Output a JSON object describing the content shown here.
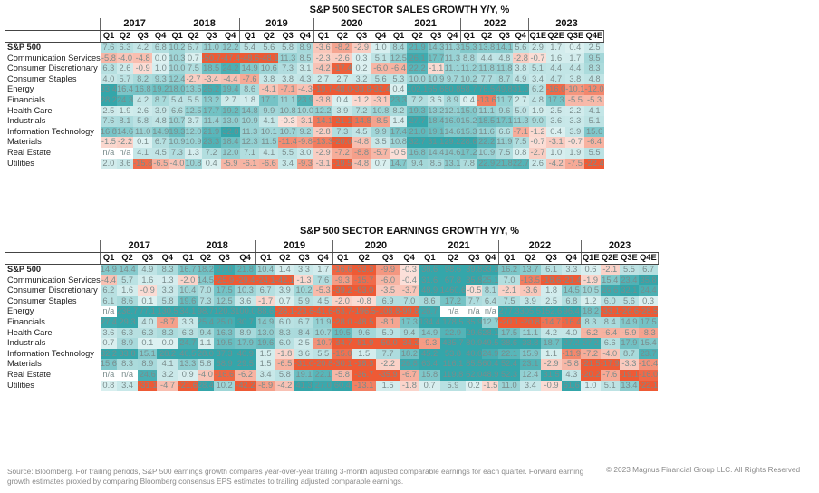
{
  "chart_data": [
    {
      "type": "heatmap",
      "title": "S&P 500 SECTOR SALES GROWTH Y/Y, %",
      "years": [
        "2017",
        "2018",
        "2019",
        "2020",
        "2021",
        "2022",
        "2023"
      ],
      "quarters": [
        "Q1",
        "Q2",
        "Q3",
        "Q4",
        "Q1",
        "Q2",
        "Q3",
        "Q4",
        "Q1",
        "Q2",
        "Q3",
        "Q4",
        "Q1",
        "Q2",
        "Q3",
        "Q4",
        "Q1",
        "Q2",
        "Q3",
        "Q4",
        "Q1",
        "Q2",
        "Q3",
        "Q4",
        "Q1E",
        "Q2E",
        "Q3E",
        "Q4E"
      ],
      "colors": {
        "positive": "#34a6aa",
        "negative": "#ee5a35",
        "neutral": "#ffffff"
      },
      "rows": [
        {
          "label": "S&P 500",
          "bold": true,
          "values": [
            7.6,
            6.3,
            4.2,
            6.8,
            10.2,
            6.7,
            11.0,
            12.2,
            5.4,
            5.6,
            5.8,
            8.9,
            -3.6,
            -8.2,
            -2.9,
            1.0,
            8.4,
            21.9,
            14.3,
            11.3,
            15.3,
            13.8,
            14.1,
            5.6,
            2.9,
            1.7,
            0.4,
            2.5
          ]
        },
        {
          "label": "Communication Services",
          "values": [
            -5.8,
            -4.0,
            -4.8,
            0.0,
            10.3,
            0.7,
            -50.7,
            -47.4,
            -48.6,
            -48.1,
            11.3,
            8.5,
            -2.3,
            -2.6,
            0.3,
            5.1,
            12.5,
            26.1,
            17.7,
            11.3,
            8.8,
            4.4,
            4.8,
            -2.8,
            -0.7,
            1.6,
            1.7,
            9.5
          ]
        },
        {
          "label": "Consumer Discretionary",
          "values": [
            6.3,
            2.6,
            -0.9,
            1.0,
            10.0,
            7.5,
            18.5,
            24.2,
            14.9,
            10.6,
            7.3,
            3.1,
            -4.2,
            -17.4,
            0.2,
            -6.0,
            -6.4,
            22.2,
            -1.1,
            11.1,
            11.2,
            11.8,
            11.8,
            3.8,
            5.1,
            4.4,
            4.4,
            8.3
          ]
        },
        {
          "label": "Consumer Staples",
          "values": [
            4.0,
            5.7,
            8.2,
            9.3,
            12.4,
            -2.7,
            -3.4,
            -4.4,
            -7.6,
            3.8,
            3.8,
            4.3,
            2.7,
            2.7,
            3.2,
            5.6,
            5.3,
            10.0,
            10.9,
            9.7,
            10.2,
            7.7,
            8.7,
            4.9,
            3.4,
            4.7,
            3.8,
            4.8
          ]
        },
        {
          "label": "Energy",
          "values": [
            33.4,
            16.4,
            16.8,
            19.2,
            18.0,
            13.5,
            25.2,
            19.4,
            8.6,
            -4.1,
            -7.1,
            -4.3,
            -19.7,
            -48.0,
            -33.8,
            -32.4,
            0.4,
            102.1,
            65.6,
            80.8,
            58.7,
            76.5,
            49.8,
            31.0,
            6.2,
            -16.0,
            -10.1,
            -12.0
          ]
        },
        {
          "label": "Financials",
          "values": [
            28.2,
            24.3,
            4.2,
            8.7,
            5.4,
            5.5,
            13.2,
            2.7,
            1.8,
            17.1,
            11.1,
            23.9,
            -3.8,
            0.4,
            -1.2,
            -3.1,
            23.3,
            7.2,
            3.6,
            8.9,
            0.4,
            -13.6,
            11.7,
            2.7,
            4.8,
            17.3,
            -5.5,
            -5.3
          ]
        },
        {
          "label": "Health Care",
          "values": [
            2.5,
            1.9,
            2.6,
            3.9,
            6.6,
            12.5,
            17.7,
            19.2,
            14.8,
            9.9,
            10.8,
            10.0,
            12.2,
            3.9,
            7.2,
            10.8,
            8.2,
            19.3,
            13.2,
            12.1,
            15.0,
            11.1,
            9.6,
            5.0,
            1.9,
            2.5,
            2.2,
            4.1
          ]
        },
        {
          "label": "Industrials",
          "values": [
            7.6,
            8.1,
            5.8,
            4.8,
            10.7,
            3.7,
            11.4,
            13.0,
            10.9,
            4.1,
            -0.3,
            -3.1,
            -14.1,
            -21.1,
            -14.8,
            -8.5,
            1.4,
            27.7,
            18.4,
            16.0,
            15.2,
            18.5,
            17.1,
            11.3,
            9.0,
            3.6,
            3.3,
            5.1
          ]
        },
        {
          "label": "Information Technology",
          "values": [
            16.8,
            14.6,
            11.0,
            14.9,
            19.3,
            12.0,
            21.9,
            32.8,
            11.3,
            10.1,
            10.7,
            9.2,
            -2.8,
            7.3,
            4.5,
            9.9,
            17.4,
            21.0,
            19.1,
            14.6,
            15.3,
            11.6,
            6.6,
            -7.1,
            -1.2,
            0.4,
            3.9,
            15.6
          ]
        },
        {
          "label": "Materials",
          "values": [
            -1.5,
            -2.2,
            0.1,
            6.7,
            10.9,
            10.9,
            23.3,
            18.4,
            12.3,
            11.5,
            -11.4,
            -9.8,
            -13.3,
            -20.0,
            -4.8,
            3.5,
            10.8,
            32.7,
            31.1,
            29.2,
            28.6,
            22.2,
            11.9,
            7.5,
            -0.7,
            -3.1,
            -0.7,
            -6.4
          ]
        },
        {
          "label": "Real Estate",
          "values": [
            "n/a",
            "n/a",
            4.1,
            4.5,
            7.3,
            1.3,
            7.2,
            12.0,
            7.1,
            4.1,
            5.5,
            3.0,
            -2.9,
            -7.2,
            -8.8,
            -5.7,
            -0.5,
            16.8,
            14.4,
            14.6,
            17.2,
            10.9,
            7.5,
            0.8,
            -2.7,
            1.0,
            1.9,
            5.5
          ]
        },
        {
          "label": "Utilities",
          "values": [
            2.0,
            3.6,
            -15.8,
            -6.5,
            -4.0,
            10.8,
            0.4,
            -5.9,
            -6.1,
            -6.6,
            3.4,
            -9.3,
            -3.1,
            -19.5,
            -4.8,
            0.7,
            14.7,
            9.4,
            8.5,
            13.1,
            7.8,
            22.9,
            21.8,
            22.7,
            2.6,
            -4.2,
            -7.5,
            -22.4
          ]
        }
      ]
    },
    {
      "type": "heatmap",
      "title": "S&P 500 SECTOR EARNINGS GROWTH Y/Y, %",
      "years": [
        "2017",
        "2018",
        "2019",
        "2020",
        "2021",
        "2022",
        "2023"
      ],
      "quarters": [
        "Q1",
        "Q2",
        "Q3",
        "Q4",
        "Q1",
        "Q2",
        "Q3",
        "Q4",
        "Q1",
        "Q2",
        "Q3",
        "Q4",
        "Q1",
        "Q2",
        "Q3",
        "Q4",
        "Q1",
        "Q2",
        "Q3",
        "Q4",
        "Q1",
        "Q2",
        "Q3",
        "Q4",
        "Q1E",
        "Q2E",
        "Q3E",
        "Q4E"
      ],
      "colors": {
        "positive": "#34a6aa",
        "negative": "#ee5a35",
        "neutral": "#ffffff"
      },
      "rows": [
        {
          "label": "S&P 500",
          "bold": true,
          "values": [
            14.9,
            14.4,
            4.9,
            8.3,
            16.7,
            18.2,
            27.0,
            21.8,
            10.4,
            1.4,
            3.3,
            1.7,
            -16.6,
            -33.3,
            -9.9,
            -0.3,
            38.6,
            98.6,
            39.8,
            33.3,
            16.2,
            13.7,
            6.1,
            3.3,
            0.6,
            -2.1,
            5.5,
            6.7
          ]
        },
        {
          "label": "Communication Services",
          "values": [
            -4.4,
            5.7,
            1.6,
            1.3,
            -2.0,
            14.5,
            -25.9,
            -29.4,
            -24.1,
            -42.1,
            -1.3,
            7.6,
            -9.3,
            -15.7,
            -6.0,
            -0.4,
            31.6,
            67.8,
            35.8,
            25.1,
            7.0,
            -13.5,
            -18.6,
            -21.4,
            -1.9,
            15.4,
            23.4,
            35.8
          ]
        },
        {
          "label": "Consumer Discretionary",
          "values": [
            6.2,
            1.6,
            -0.9,
            3.3,
            10.4,
            7.0,
            17.5,
            10.3,
            6.7,
            3.9,
            10.2,
            -5.3,
            -39.2,
            -83.0,
            -3.5,
            -3.7,
            48.9,
            1460.6,
            -0.5,
            8.1,
            -2.1,
            -3.6,
            1.8,
            14.5,
            10.5,
            26.6,
            32.1,
            24.4
          ]
        },
        {
          "label": "Consumer Staples",
          "values": [
            6.1,
            8.6,
            0.1,
            5.8,
            19.6,
            7.3,
            12.5,
            3.6,
            -1.7,
            0.7,
            5.9,
            4.5,
            -2.0,
            -0.8,
            6.9,
            7.0,
            8.6,
            17.2,
            7.7,
            6.4,
            7.5,
            3.9,
            2.5,
            6.8,
            1.2,
            6.0,
            5.6,
            0.3
          ]
        },
        {
          "label": "Energy",
          "values": [
            "n/a",
            236.7,
            77.1,
            130.5,
            34.1,
            98.7,
            120.3,
            100.0,
            88.6,
            -28.1,
            -23.6,
            -41.6,
            -63.7,
            -196.5,
            -108.8,
            -99.8,
            26.7,
            "n/a",
            "n/a",
            "n/a",
            277.3,
            305.5,
            152.6,
            96.4,
            18.2,
            -33.1,
            -26.6,
            -28.5
          ]
        },
        {
          "label": "Financials",
          "values": [
            27.4,
            29.3,
            4.0,
            -8.7,
            3.3,
            25.4,
            25.0,
            30.7,
            14.9,
            6.0,
            6.7,
            11.9,
            -28.0,
            -48.5,
            -8.1,
            17.3,
            134.4,
            178.5,
            35.9,
            12.7,
            -20.1,
            -20.8,
            -14.7,
            -16.4,
            8.3,
            8.4,
            14.9,
            17.5
          ]
        },
        {
          "label": "Health Care",
          "values": [
            3.6,
            6.3,
            6.3,
            8.3,
            6.3,
            9.4,
            16.3,
            8.9,
            13.0,
            8.3,
            8.4,
            10.7,
            19.5,
            9.6,
            5.9,
            9.4,
            14.9,
            22.9,
            29.6,
            28.1,
            17.5,
            11.1,
            4.2,
            4.0,
            -6.2,
            -6.4,
            -5.9,
            -8.3
          ]
        },
        {
          "label": "Industrials",
          "values": [
            0.7,
            8.9,
            0.1,
            0.0,
            24.7,
            1.1,
            19.5,
            17.9,
            19.6,
            6.0,
            2.5,
            -10.7,
            -34.7,
            -81.9,
            -50.0,
            -34.2,
            -9.3,
            435.7,
            80.9,
            49.5,
            38.6,
            33.8,
            18.7,
            27.2,
            27.2,
            6.6,
            17.9,
            15.4
          ]
        },
        {
          "label": "Information Technology",
          "values": [
            32.2,
            33.8,
            15.1,
            28.2,
            40.5,
            28.0,
            37.3,
            40.9,
            1.5,
            -1.8,
            3.6,
            5.5,
            -15.0,
            1.5,
            7.7,
            18.2,
            45.2,
            53.8,
            40.0,
            24.9,
            22.1,
            15.9,
            1.1,
            -11.9,
            -7.2,
            -4.0,
            8.7,
            23.7
          ]
        },
        {
          "label": "Materials",
          "values": [
            15.6,
            8.3,
            8.9,
            4.1,
            13.3,
            5.8,
            68.9,
            29.5,
            1.5,
            -6.5,
            -31.0,
            -20.8,
            -30.1,
            -18.3,
            -2.2,
            26.8,
            63.4,
            116.1,
            85.5,
            60.4,
            52.4,
            23.1,
            -2.9,
            -5.8,
            -21.5,
            -17.9,
            -3.3,
            -10.4
          ]
        },
        {
          "label": "Real Estate",
          "values": [
            "n/a",
            "n/a",
            24.6,
            3.2,
            0.9,
            -4.0,
            -16.6,
            -6.2,
            3.4,
            5.8,
            19.1,
            22.1,
            -5.8,
            -36.7,
            -35.9,
            -6.7,
            15.8,
            119.8,
            62.0,
            48.9,
            52.3,
            12.4,
            31.5,
            4.3,
            -20.2,
            -7.6,
            -19.1,
            -16.0
          ]
        },
        {
          "label": "Utilities",
          "values": [
            0.8,
            3.4,
            -31.1,
            -4.7,
            -21.6,
            28.4,
            10.2,
            -42.2,
            -8.9,
            -4.2,
            41.3,
            27.0,
            60.4,
            -13.1,
            1.5,
            -1.8,
            0.7,
            5.9,
            0.2,
            -1.5,
            11.0,
            3.4,
            -0.9,
            61.6,
            1.0,
            5.1,
            13.4,
            -22.1
          ]
        }
      ]
    }
  ],
  "footer": {
    "source_note": "Source: Bloomberg. For trailing periods, S&P 500 earnings growth compares year-over-year trailing 3-month adjusted comparable earnings for each quarter. Forward earning growth estimates proxied by comparing Bloomberg consensus EPS estimates to trailing adjusted comparable earnings.",
    "copyright": "© 2023 Magnus Financial Group LLC. All Rights Reserved"
  }
}
